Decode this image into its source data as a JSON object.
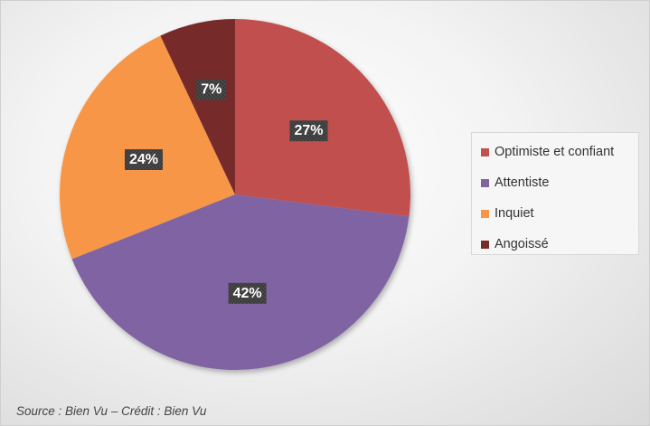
{
  "chart_data": {
    "type": "pie",
    "categories": [
      "Optimiste et confiant",
      "Attentiste",
      "Inquiet",
      "Angoissé"
    ],
    "values": [
      27,
      42,
      24,
      7
    ],
    "data_labels": [
      "27%",
      "42%",
      "24%",
      "7%"
    ],
    "colors": [
      "#c0504d",
      "#8064a2",
      "#f79646",
      "#772c2a"
    ],
    "legend_position": "right",
    "start_angle": "12 o'clock",
    "direction": "clockwise"
  },
  "source_note": "Source : Bien Vu – Crédit : Bien Vu"
}
